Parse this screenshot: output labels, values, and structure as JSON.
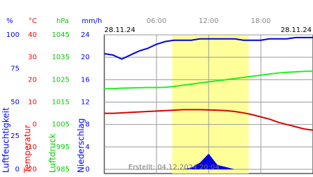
{
  "chart_data": {
    "type": "line",
    "date_start": "28.11.24",
    "date_end": "28.11.24",
    "footer": "Erstellt: 04.12.2024 20:04",
    "xlim": [
      0,
      24
    ],
    "xticks": [
      {
        "value": 6,
        "label": "06:00"
      },
      {
        "value": 12,
        "label": "12:00"
      },
      {
        "value": 18,
        "label": "18:00"
      }
    ],
    "daylight": [
      7.8,
      16.6
    ],
    "grid": true,
    "axes": [
      {
        "name": "Luftfeuchtigkeit",
        "unit": "%",
        "color": "#0000ff",
        "ylim": [
          0,
          100
        ],
        "yticks": [
          0,
          25,
          50,
          75,
          100
        ]
      },
      {
        "name": "Temperatur",
        "unit": "°C",
        "color": "#ff0000",
        "ylim": [
          -20,
          40
        ],
        "yticks": [
          -20,
          -10,
          0,
          10,
          20,
          30,
          40
        ]
      },
      {
        "name": "Luftdruck",
        "unit": "hPa",
        "color": "#00cc00",
        "ylim": [
          985,
          1045
        ],
        "yticks": [
          985,
          995,
          1005,
          1015,
          1025,
          1035,
          1045
        ]
      },
      {
        "name": "Niederschlag",
        "unit": "mm/h",
        "color": "#0000ff",
        "ylim": [
          0,
          24
        ],
        "yticks": [
          0,
          4,
          8,
          12,
          16,
          20,
          24
        ]
      }
    ],
    "x": [
      0,
      1,
      2,
      3,
      4,
      5,
      6,
      7,
      8,
      9,
      10,
      11,
      12,
      13,
      14,
      15,
      16,
      17,
      18,
      19,
      20,
      21,
      22,
      23,
      24
    ],
    "series": [
      {
        "axis": 0,
        "kind": "line",
        "color": "#0000dd",
        "values": [
          86,
          85,
          82,
          85,
          88,
          90,
          93,
          95,
          96,
          96,
          96,
          97,
          97,
          97,
          97,
          97,
          96,
          96,
          96,
          97,
          97,
          97,
          98,
          98,
          98
        ]
      },
      {
        "axis": 2,
        "kind": "line",
        "color": "#22ee22",
        "values": [
          1021,
          1021,
          1021.2,
          1021.3,
          1021.4,
          1021.5,
          1021.5,
          1021.6,
          1022,
          1022.5,
          1023,
          1023.5,
          1024,
          1024.5,
          1025,
          1025.5,
          1026,
          1026.5,
          1027,
          1027.5,
          1028,
          1028.3,
          1028.5,
          1028.7,
          1028.8
        ]
      },
      {
        "axis": 1,
        "kind": "line",
        "color": "#dd0000",
        "values": [
          5,
          5,
          5.2,
          5.4,
          5.6,
          5.8,
          6,
          6.2,
          6.4,
          6.6,
          6.6,
          6.6,
          6.5,
          6.4,
          6.2,
          5.8,
          5.2,
          4.4,
          3.4,
          2.4,
          1,
          0,
          -1,
          -2,
          -2.5
        ]
      },
      {
        "axis": 3,
        "kind": "area",
        "color": "#0000dd",
        "values": [
          0,
          0,
          0,
          0,
          0,
          0,
          0,
          0,
          0,
          0,
          0.3,
          1.2,
          2.8,
          0.8,
          0.4,
          0,
          0,
          0,
          0,
          0,
          0,
          0,
          0,
          0,
          0
        ]
      }
    ]
  }
}
